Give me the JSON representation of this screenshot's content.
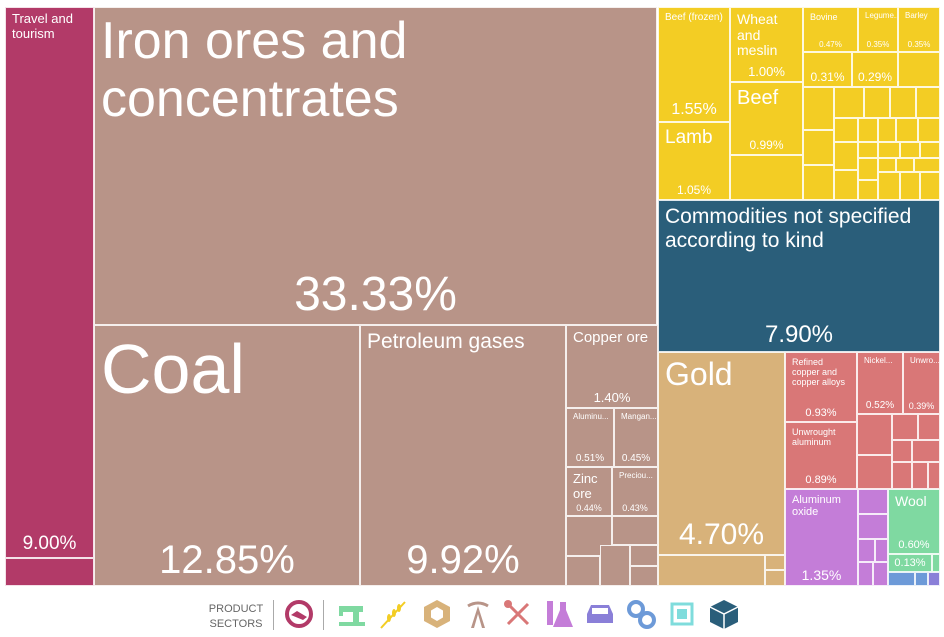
{
  "chart_data": {
    "type": "treemap",
    "items": [
      {
        "name": "Travel and tourism",
        "value": "9.00%",
        "sector": "services",
        "color": "#b23a68"
      },
      {
        "name": "Iron ores and concentrates",
        "value": "33.33%",
        "sector": "minerals",
        "color": "#b89488"
      },
      {
        "name": "Coal",
        "value": "12.85%",
        "sector": "minerals",
        "color": "#b89488"
      },
      {
        "name": "Petroleum gases",
        "value": "9.92%",
        "sector": "minerals",
        "color": "#b89488"
      },
      {
        "name": "Copper ore",
        "value": "1.40%",
        "sector": "minerals",
        "color": "#b89488"
      },
      {
        "name": "Aluminu...",
        "value": "0.51%",
        "sector": "minerals",
        "color": "#b89488"
      },
      {
        "name": "Mangan...",
        "value": "0.45%",
        "sector": "minerals",
        "color": "#b89488"
      },
      {
        "name": "Zinc ore",
        "value": "0.44%",
        "sector": "minerals",
        "color": "#b89488"
      },
      {
        "name": "Preciou...",
        "value": "0.43%",
        "sector": "minerals",
        "color": "#b89488"
      },
      {
        "name": "Beef (frozen)",
        "value": "1.55%",
        "sector": "agriculture",
        "color": "#f3cd24"
      },
      {
        "name": "Lamb",
        "value": "1.05%",
        "sector": "agriculture",
        "color": "#f3cd24"
      },
      {
        "name": "Wheat and meslin",
        "value": "1.00%",
        "sector": "agriculture",
        "color": "#f3cd24"
      },
      {
        "name": "Beef",
        "value": "0.99%",
        "sector": "agriculture",
        "color": "#f3cd24"
      },
      {
        "name": "Bovine",
        "value": "0.47%",
        "sector": "agriculture",
        "color": "#f3cd24"
      },
      {
        "name": "Legume...",
        "value": "0.35%",
        "sector": "agriculture",
        "color": "#f3cd24"
      },
      {
        "name": "Barley",
        "value": "0.35%",
        "sector": "agriculture",
        "color": "#f3cd24"
      },
      {
        "name": "",
        "value": "0.31%",
        "sector": "agriculture",
        "color": "#f3cd24"
      },
      {
        "name": "",
        "value": "0.29%",
        "sector": "agriculture",
        "color": "#f3cd24"
      },
      {
        "name": "Commodities not specified according to kind",
        "value": "7.90%",
        "sector": "other",
        "color": "#2a5e7a"
      },
      {
        "name": "Gold",
        "value": "4.70%",
        "sector": "stone",
        "color": "#d8b27a"
      },
      {
        "name": "Refined copper and copper alloys",
        "value": "0.93%",
        "sector": "metals",
        "color": "#d97777"
      },
      {
        "name": "Nickel...",
        "value": "0.52%",
        "sector": "metals",
        "color": "#d97777"
      },
      {
        "name": "Unwro...",
        "value": "0.39%",
        "sector": "metals",
        "color": "#d97777"
      },
      {
        "name": "Unwrought aluminum",
        "value": "0.89%",
        "sector": "metals",
        "color": "#d97777"
      },
      {
        "name": "Aluminum oxide",
        "value": "1.35%",
        "sector": "chemicals",
        "color": "#c47dd8"
      },
      {
        "name": "Wool",
        "value": "0.60%",
        "sector": "textiles",
        "color": "#7fd9a1"
      },
      {
        "name": "",
        "value": "0.13%",
        "sector": "textiles",
        "color": "#7fd9a1"
      }
    ]
  },
  "legend": {
    "title": "PRODUCT SECTORS",
    "sectors": [
      {
        "icon": "services-handshake-icon",
        "color": "#b23a68"
      },
      {
        "icon": "textiles-sewing-machine-icon",
        "color": "#7fd9a1"
      },
      {
        "icon": "agriculture-wheat-icon",
        "color": "#f3cd24"
      },
      {
        "icon": "stone-gem-icon",
        "color": "#d8b27a"
      },
      {
        "icon": "minerals-oil-derrick-icon",
        "color": "#b89488"
      },
      {
        "icon": "metals-pickaxe-shovel-icon",
        "color": "#d97777"
      },
      {
        "icon": "chemicals-flask-icon",
        "color": "#c47dd8"
      },
      {
        "icon": "vehicles-car-icon",
        "color": "#8a7fd8"
      },
      {
        "icon": "machinery-gears-icon",
        "color": "#6d9ad8"
      },
      {
        "icon": "electronics-chip-icon",
        "color": "#7fdcdc"
      },
      {
        "icon": "other-box-icon",
        "color": "#2a5e7a"
      }
    ]
  }
}
